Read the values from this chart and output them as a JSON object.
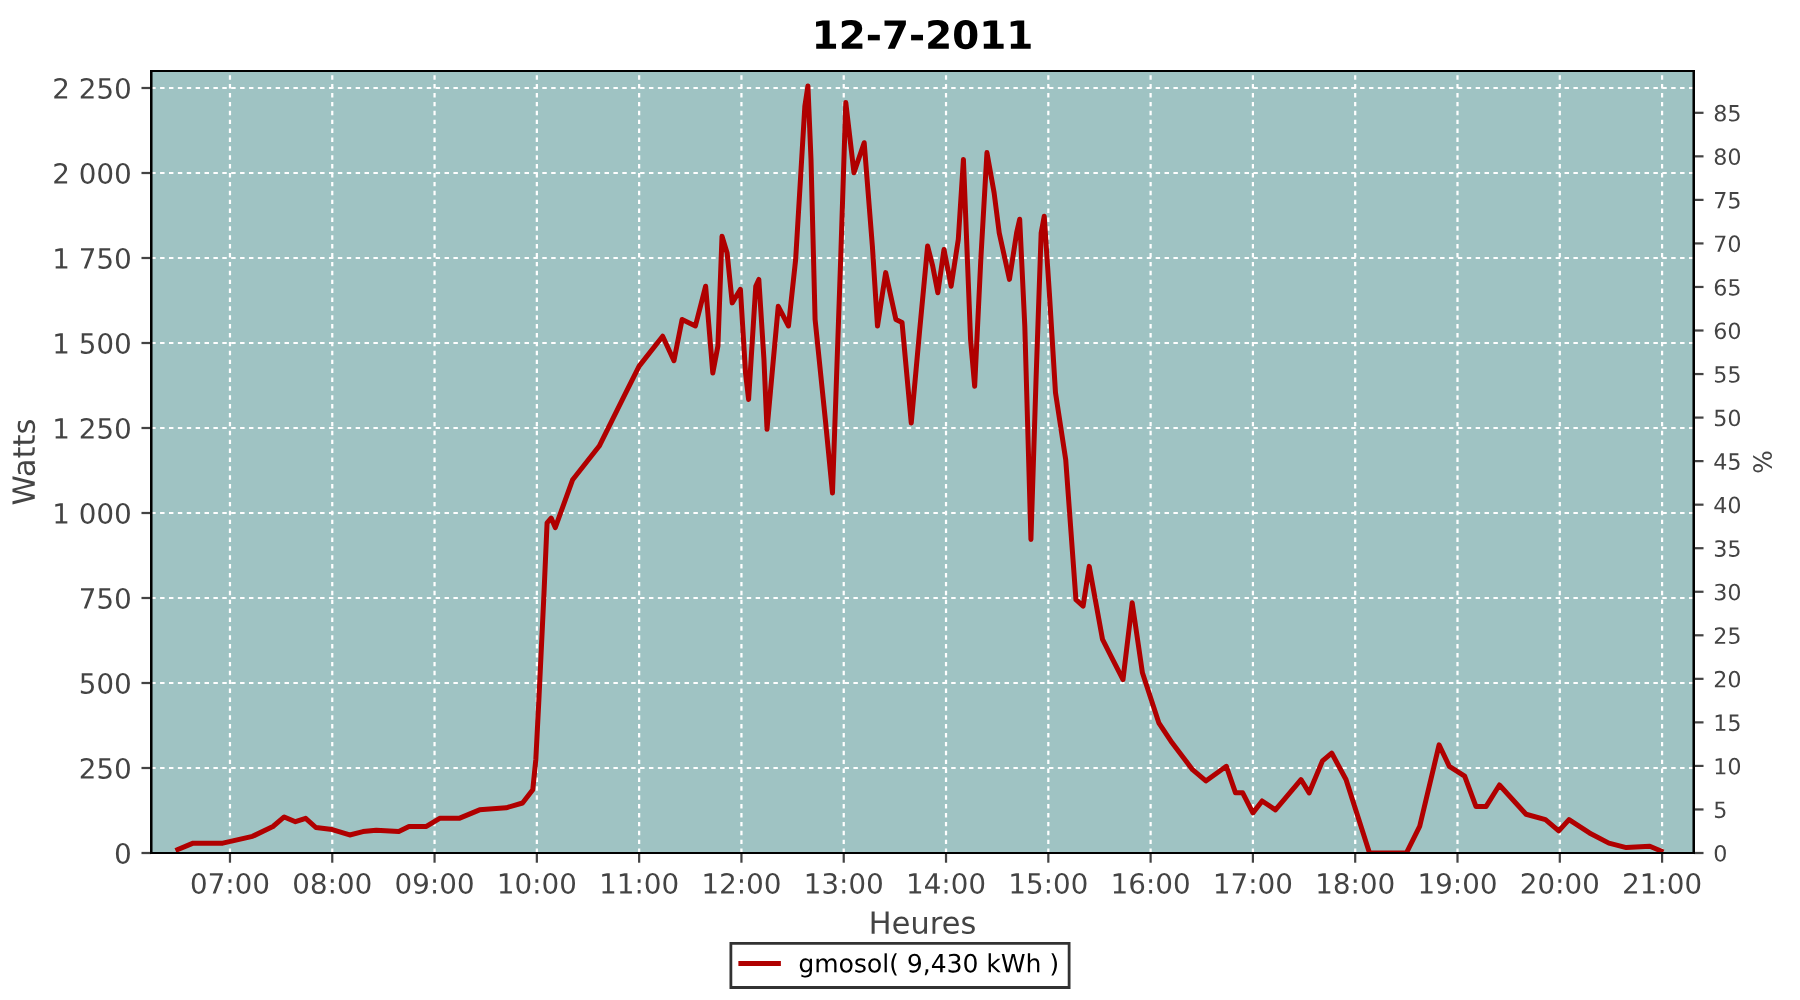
{
  "chart_data": {
    "type": "line",
    "title": "12-7-2011",
    "xlabel": "Heures",
    "ylabel": "Watts",
    "y2label": "%",
    "xlim": [
      6.23,
      21.31
    ],
    "xticks": [
      {
        "value": 7,
        "label": "07:00"
      },
      {
        "value": 8,
        "label": "08:00"
      },
      {
        "value": 9,
        "label": "09:00"
      },
      {
        "value": 10,
        "label": "10:00"
      },
      {
        "value": 11,
        "label": "11:00"
      },
      {
        "value": 12,
        "label": "12:00"
      },
      {
        "value": 13,
        "label": "13:00"
      },
      {
        "value": 14,
        "label": "14:00"
      },
      {
        "value": 15,
        "label": "15:00"
      },
      {
        "value": 16,
        "label": "16:00"
      },
      {
        "value": 17,
        "label": "17:00"
      },
      {
        "value": 18,
        "label": "18:00"
      },
      {
        "value": 19,
        "label": "19:00"
      },
      {
        "value": 20,
        "label": "20:00"
      },
      {
        "value": 21,
        "label": "21:00"
      }
    ],
    "ylim": [
      0,
      2300
    ],
    "yticks": [
      0,
      250,
      500,
      750,
      {
        "value": 1000,
        "label": "1 000"
      },
      {
        "value": 1250,
        "label": "1 250"
      },
      {
        "value": 1500,
        "label": "1 500"
      },
      {
        "value": 1750,
        "label": "1 750"
      },
      {
        "value": 2000,
        "label": "2 000"
      },
      {
        "value": 2250,
        "label": "2 250"
      }
    ],
    "y2lim": [
      0,
      89.8
    ],
    "y2ticks": [
      0,
      5,
      10,
      15,
      20,
      25,
      30,
      35,
      40,
      45,
      50,
      55,
      60,
      65,
      70,
      75,
      80,
      85
    ],
    "grid": true,
    "legend": "bottom",
    "marker": "none",
    "line_style": "solid",
    "series": [
      {
        "name": "gmosol( 9,430 kWh )",
        "color": "#b00000",
        "x": [
          6.49,
          6.64,
          6.93,
          7.22,
          7.42,
          7.53,
          7.64,
          7.74,
          7.84,
          8.0,
          8.17,
          8.3,
          8.43,
          8.65,
          8.75,
          8.92,
          9.05,
          9.24,
          9.44,
          9.7,
          9.86,
          9.96,
          9.99,
          10.02,
          10.07,
          10.1,
          10.14,
          10.18,
          10.35,
          10.61,
          10.87,
          11.0,
          11.23,
          11.34,
          11.42,
          11.55,
          11.65,
          11.72,
          11.77,
          11.81,
          11.86,
          11.91,
          11.99,
          12.04,
          12.07,
          12.14,
          12.17,
          12.22,
          12.25,
          12.3,
          12.36,
          12.46,
          12.53,
          12.62,
          12.65,
          12.68,
          12.72,
          12.82,
          12.89,
          12.97,
          13.02,
          13.1,
          13.2,
          13.28,
          13.33,
          13.41,
          13.51,
          13.57,
          13.66,
          13.74,
          13.82,
          13.87,
          13.92,
          13.98,
          14.05,
          14.12,
          14.17,
          14.24,
          14.28,
          14.34,
          14.4,
          14.47,
          14.52,
          14.62,
          14.69,
          14.72,
          14.77,
          14.83,
          14.88,
          14.93,
          14.96,
          15.01,
          15.07,
          15.17,
          15.27,
          15.34,
          15.4,
          15.53,
          15.63,
          15.73,
          15.82,
          15.92,
          16.08,
          16.21,
          16.41,
          16.54,
          16.74,
          16.83,
          16.9,
          17.0,
          17.09,
          17.22,
          17.47,
          17.55,
          17.68,
          17.77,
          17.91,
          18.14,
          18.5,
          18.63,
          18.82,
          18.92,
          19.07,
          19.18,
          19.28,
          19.41,
          19.67,
          19.86,
          19.99,
          20.09,
          20.29,
          20.48,
          20.65,
          20.88,
          20.99
        ],
        "values": [
          10,
          29,
          29,
          49,
          78,
          106,
          92,
          102,
          75,
          69,
          53,
          63,
          67,
          63,
          78,
          78,
          102,
          102,
          127,
          133,
          147,
          186,
          275,
          451,
          765,
          971,
          985,
          957,
          1098,
          1197,
          1354,
          1432,
          1520,
          1448,
          1569,
          1550,
          1667,
          1412,
          1491,
          1814,
          1765,
          1618,
          1658,
          1412,
          1334,
          1667,
          1687,
          1452,
          1246,
          1412,
          1608,
          1550,
          1746,
          2197,
          2256,
          2040,
          1569,
          1275,
          1059,
          1746,
          2207,
          2001,
          2089,
          1785,
          1550,
          1707,
          1569,
          1560,
          1265,
          1530,
          1785,
          1726,
          1648,
          1775,
          1667,
          1805,
          2040,
          1510,
          1373,
          1746,
          2060,
          1942,
          1824,
          1687,
          1824,
          1864,
          1550,
          922,
          1393,
          1824,
          1873,
          1648,
          1354,
          1157,
          745,
          726,
          843,
          628,
          569,
          510,
          736,
          530,
          383,
          324,
          245,
          212,
          255,
          177,
          177,
          118,
          153,
          127,
          216,
          177,
          271,
          294,
          216,
          0,
          0,
          78,
          318,
          255,
          226,
          137,
          137,
          200,
          114,
          98,
          65,
          98,
          59,
          29,
          16,
          20,
          6
        ]
      }
    ]
  }
}
